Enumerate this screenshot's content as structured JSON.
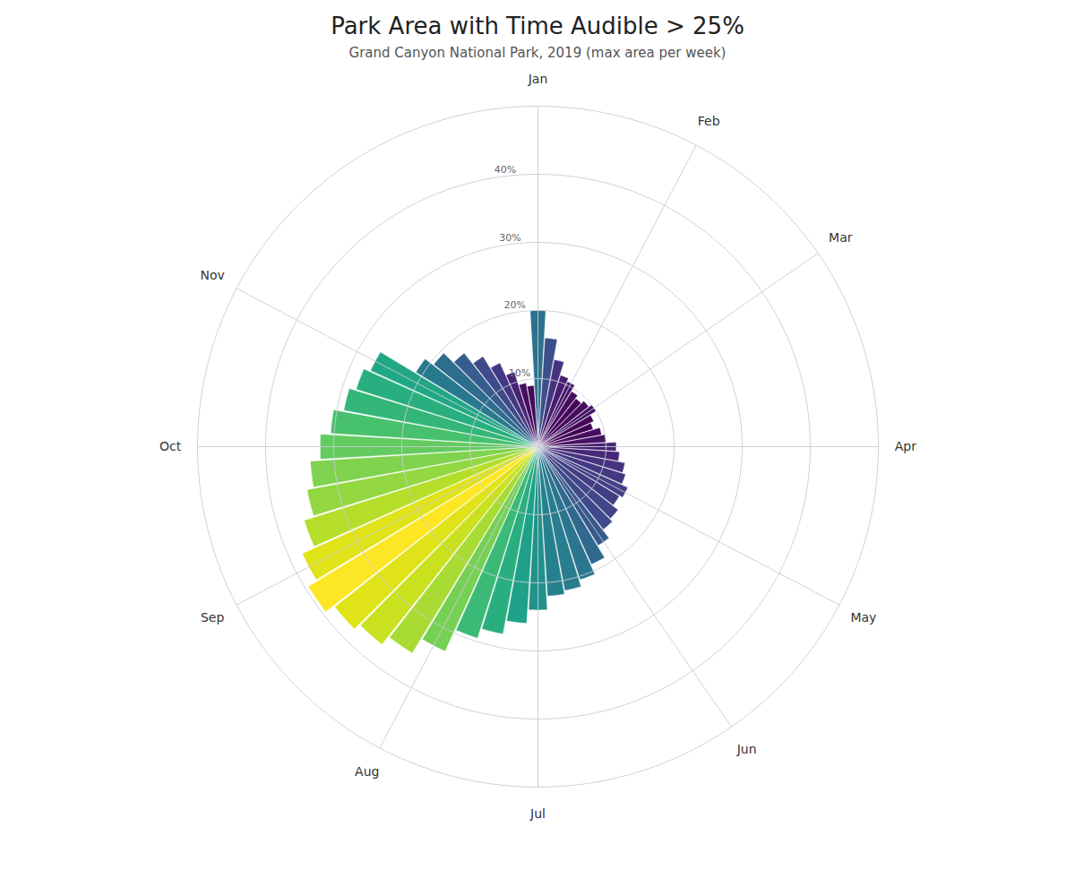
{
  "chart_data": {
    "type": "bar",
    "title": "Park Area with Time Audible > 25%",
    "subtitle": "Grand Canyon National Park, 2019 (max area per week)",
    "categories": [
      "Jan",
      null,
      null,
      null,
      "Feb",
      null,
      null,
      null,
      "Mar",
      null,
      null,
      null,
      null,
      "Apr",
      null,
      null,
      null,
      "May",
      null,
      null,
      null,
      "Jun",
      null,
      null,
      null,
      null,
      "Jul",
      null,
      null,
      null,
      "Aug",
      null,
      null,
      null,
      null,
      "Sep",
      null,
      null,
      null,
      "Oct",
      null,
      null,
      null,
      "Nov",
      null,
      null,
      null,
      null,
      null,
      null,
      null,
      null
    ],
    "values": [
      20.0,
      16.0,
      13.0,
      11.0,
      10.5,
      9.5,
      9.0,
      9.5,
      10.0,
      9.0,
      8.5,
      9.5,
      10.0,
      11.5,
      12.0,
      13.0,
      13.5,
      14.5,
      14.0,
      15.0,
      15.5,
      17.0,
      19.0,
      20.5,
      21.5,
      22.0,
      24.0,
      26.0,
      28.0,
      29.5,
      33.0,
      35.5,
      37.0,
      38.0,
      39.5,
      38.0,
      36.0,
      34.5,
      33.5,
      32.0,
      30.5,
      29.0,
      28.0,
      27.0,
      21.0,
      19.5,
      17.5,
      15.5,
      13.5,
      11.5,
      9.5,
      9.0
    ],
    "ylim": [
      0,
      50
    ],
    "yticks": [
      {
        "value": 10,
        "label": "10%"
      },
      {
        "value": 20,
        "label": "20%"
      },
      {
        "value": 30,
        "label": "30%"
      },
      {
        "value": 40,
        "label": "40%"
      }
    ],
    "grid": true
  }
}
